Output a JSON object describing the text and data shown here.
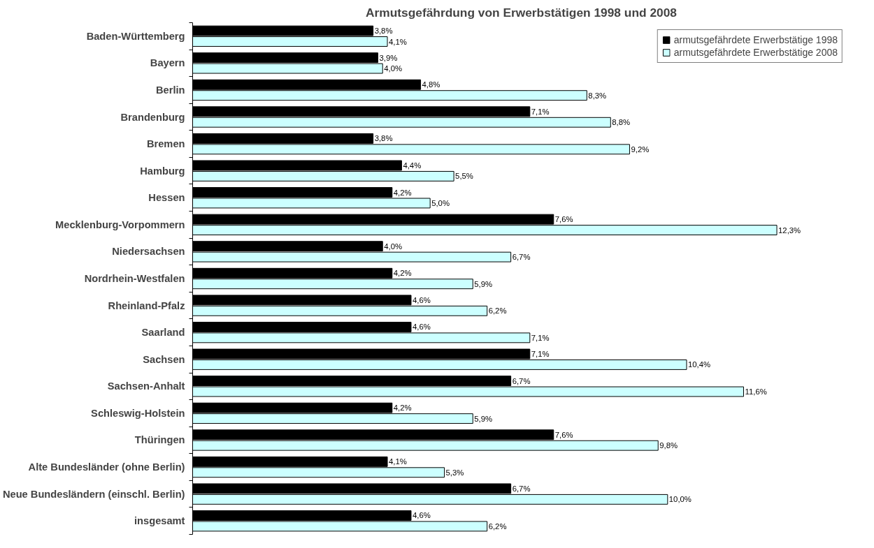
{
  "chart_data": {
    "type": "bar",
    "orientation": "horizontal",
    "title": "Armutsgefährdung von Erwerbstätigen 1998 und 2008",
    "categories": [
      "Baden-Württemberg",
      "Bayern",
      "Berlin",
      "Brandenburg",
      "Bremen",
      "Hamburg",
      "Hessen",
      "Mecklenburg-Vorpommern",
      "Niedersachsen",
      "Nordrhein-Westfalen",
      "Rheinland-Pfalz",
      "Saarland",
      "Sachsen",
      "Sachsen-Anhalt",
      "Schleswig-Holstein",
      "Thüringen",
      "Alte Bundesländer (ohne Berlin)",
      "Neue Bundesländern (einschl. Berlin)",
      "insgesamt"
    ],
    "series": [
      {
        "name": "armutsgefährdete Erwerbstätige 1998",
        "color": "#000000",
        "values": [
          3.8,
          3.9,
          4.8,
          7.1,
          3.8,
          4.4,
          4.2,
          7.6,
          4.0,
          4.2,
          4.6,
          4.6,
          7.1,
          6.7,
          4.2,
          7.6,
          4.1,
          6.7,
          4.6
        ],
        "value_labels": [
          "3,8%",
          "3,9%",
          "4,8%",
          "7,1%",
          "3,8%",
          "4,4%",
          "4,2%",
          "7,6%",
          "4,0%",
          "4,2%",
          "4,6%",
          "4,6%",
          "7,1%",
          "6,7%",
          "4,2%",
          "7,6%",
          "4,1%",
          "6,7%",
          "4,6%"
        ]
      },
      {
        "name": "armutsgefährdete Erwerbstätige 2008",
        "color": "#ccffff",
        "values": [
          4.1,
          4.0,
          8.3,
          8.8,
          9.2,
          5.5,
          5.0,
          12.3,
          6.7,
          5.9,
          6.2,
          7.1,
          10.4,
          11.6,
          5.9,
          9.8,
          5.3,
          10.0,
          6.2
        ],
        "value_labels": [
          "4,1%",
          "4,0%",
          "8,3%",
          "8,8%",
          "9,2%",
          "5,5%",
          "5,0%",
          "12,3%",
          "6,7%",
          "5,9%",
          "6,2%",
          "7,1%",
          "10,4%",
          "11,6%",
          "5,9%",
          "9,8%",
          "5,3%",
          "10,0%",
          "6,2%"
        ]
      }
    ],
    "grid": false,
    "legend": "top right"
  }
}
